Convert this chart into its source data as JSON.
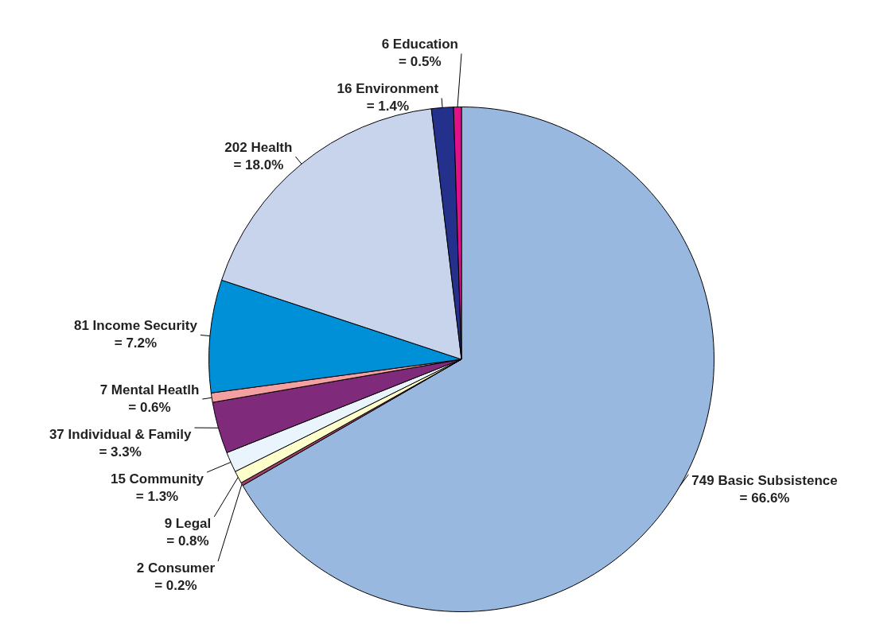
{
  "chart_data": {
    "type": "pie",
    "categories": [
      "749 Basic Subsistence",
      "2 Consumer",
      "9 Legal",
      "15 Community",
      "37 Individual & Family",
      "7 Mental Heatlh",
      "81 Income Security",
      "202 Health",
      "16 Environment",
      "6 Education"
    ],
    "values": [
      66.6,
      0.2,
      0.8,
      1.3,
      3.3,
      0.6,
      7.2,
      18.0,
      1.4,
      0.5
    ],
    "colors": [
      "#99b8e0",
      "#a0406a",
      "#ffffcc",
      "#eaf4fc",
      "#7f2a7a",
      "#f4a0a0",
      "#0090d8",
      "#c8d4ec",
      "#23308c",
      "#e0128a"
    ],
    "value_labels": [
      "= 66.6%",
      "= 0.2%",
      "= 0.8%",
      "= 1.3%",
      "= 3.3%",
      "= 0.6%",
      "= 7.2%",
      "= 18.0%",
      "= 1.4%",
      "= 0.5%"
    ],
    "legend": false
  }
}
